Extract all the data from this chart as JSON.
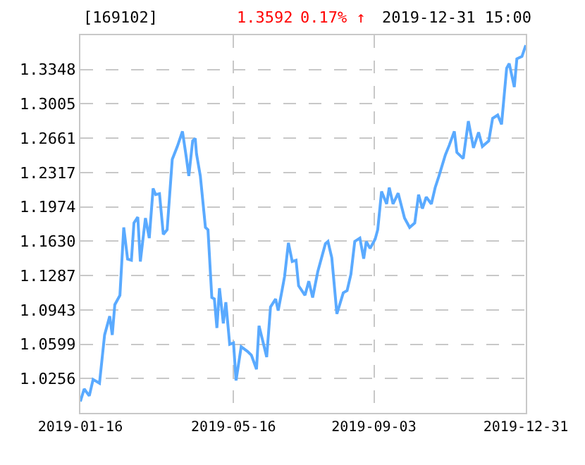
{
  "chart_data": {
    "type": "line",
    "title": "[169102]",
    "annotations": [
      "1.3592",
      "0.17% ↑",
      "2019-12-31 15:00"
    ],
    "x": [
      "2019-01-16",
      "2019-01-19",
      "2019-01-23",
      "2019-01-26",
      "2019-01-31",
      "2019-02-04",
      "2019-02-08",
      "2019-02-10",
      "2019-02-12",
      "2019-02-16",
      "2019-02-19",
      "2019-02-22",
      "2019-02-25",
      "2019-02-27",
      "2019-03-02",
      "2019-03-04",
      "2019-03-08",
      "2019-03-11",
      "2019-03-14",
      "2019-03-16",
      "2019-03-19",
      "2019-03-22",
      "2019-03-25",
      "2019-03-29",
      "2019-04-02",
      "2019-04-06",
      "2019-04-09",
      "2019-04-11",
      "2019-04-14",
      "2019-04-16",
      "2019-04-17",
      "2019-04-20",
      "2019-04-24",
      "2019-04-26",
      "2019-04-29",
      "2019-05-01",
      "2019-05-03",
      "2019-05-05",
      "2019-05-08",
      "2019-05-10",
      "2019-05-13",
      "2019-05-16",
      "2019-05-18",
      "2019-05-22",
      "2019-05-27",
      "2019-05-30",
      "2019-06-03",
      "2019-06-05",
      "2019-06-11",
      "2019-06-14",
      "2019-06-18",
      "2019-06-20",
      "2019-06-23",
      "2019-06-25",
      "2019-06-28",
      "2019-07-01",
      "2019-07-04",
      "2019-07-06",
      "2019-07-11",
      "2019-07-14",
      "2019-07-17",
      "2019-07-21",
      "2019-07-27",
      "2019-07-29",
      "2019-08-01",
      "2019-08-05",
      "2019-08-10",
      "2019-08-13",
      "2019-08-16",
      "2019-08-19",
      "2019-08-23",
      "2019-08-26",
      "2019-08-28",
      "2019-08-31",
      "2019-09-04",
      "2019-09-06",
      "2019-09-09",
      "2019-09-13",
      "2019-09-15",
      "2019-09-18",
      "2019-09-22",
      "2019-09-27",
      "2019-10-01",
      "2019-10-05",
      "2019-10-08",
      "2019-10-11",
      "2019-10-14",
      "2019-10-18",
      "2019-10-21",
      "2019-10-24",
      "2019-10-29",
      "2019-11-01",
      "2019-11-05",
      "2019-11-07",
      "2019-11-12",
      "2019-11-16",
      "2019-11-20",
      "2019-11-24",
      "2019-11-27",
      "2019-12-02",
      "2019-12-05",
      "2019-12-09",
      "2019-12-12",
      "2019-12-16",
      "2019-12-18",
      "2019-12-22",
      "2019-12-24",
      "2019-12-28",
      "2019-12-31"
    ],
    "series": [
      {
        "color": "#5aaaff",
        "values": [
          1.0026,
          1.0152,
          1.0082,
          1.0246,
          1.0208,
          1.0692,
          1.0879,
          1.0692,
          1.0995,
          1.1089,
          1.1768,
          1.1451,
          1.144,
          1.1813,
          1.1872,
          1.1427,
          1.1862,
          1.1661,
          1.2158,
          1.2097,
          1.2106,
          1.1699,
          1.1745,
          1.2449,
          1.2579,
          1.273,
          1.2471,
          1.2284,
          1.2635,
          1.2659,
          1.2505,
          1.2284,
          1.1768,
          1.1745,
          1.1066,
          1.1052,
          1.0762,
          1.116,
          1.0808,
          1.1019,
          1.0598,
          1.0612,
          1.0236,
          1.0574,
          1.0527,
          1.049,
          1.0349,
          1.0784,
          1.0471,
          1.0973,
          1.1052,
          1.0935,
          1.1136,
          1.1276,
          1.1614,
          1.1427,
          1.144,
          1.1184,
          1.1089,
          1.123,
          1.1066,
          1.1324,
          1.1605,
          1.1628,
          1.1465,
          1.0903,
          1.1114,
          1.1136,
          1.13,
          1.1628,
          1.1661,
          1.1455,
          1.1628,
          1.1558,
          1.1652,
          1.1746,
          1.2129,
          1.2003,
          1.2167,
          1.2003,
          1.2111,
          1.1862,
          1.1768,
          1.1813,
          1.2097,
          1.1957,
          1.2073,
          1.2003,
          1.2167,
          1.2284,
          1.2495,
          1.2589,
          1.273,
          1.2519,
          1.2458,
          1.2832,
          1.2565,
          1.272,
          1.2579,
          1.2635,
          1.286,
          1.2893,
          1.28,
          1.3362,
          1.3409,
          1.3174,
          1.3456,
          1.348,
          1.3592
        ]
      }
    ],
    "xlim": [
      "2019-01-16",
      "2019-12-31"
    ],
    "xticks": [
      "2019-01-16",
      "2019-05-16",
      "2019-09-03",
      "2019-12-31"
    ],
    "ylim": [
      0.9912,
      1.3692
    ],
    "yticks": [
      1.0256,
      1.0599,
      1.0943,
      1.1287,
      {
        "value": 1.163,
        "label": "1.1630"
      },
      1.1974,
      1.2317,
      1.2661,
      1.3005,
      1.3348
    ],
    "grid": true,
    "marker": "none",
    "line_style": "solid"
  }
}
